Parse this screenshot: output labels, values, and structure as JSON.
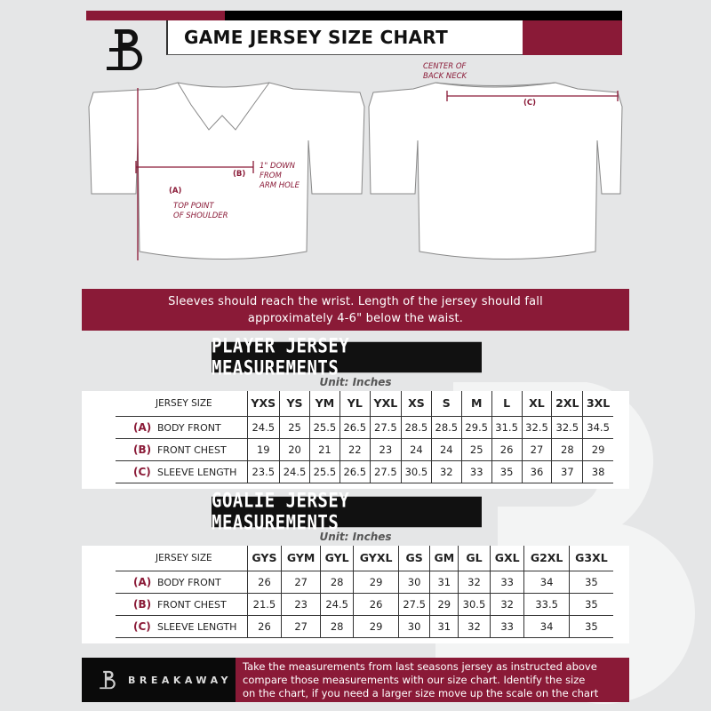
{
  "header": {
    "title": "GAME JERSEY SIZE CHART"
  },
  "colors": {
    "accent": "#8a1a37",
    "dark": "#111111",
    "background": "#e5e6e7"
  },
  "diagram": {
    "center_back_neck": [
      "CENTER OF",
      "BACK NECK"
    ],
    "label_a": "(A)",
    "label_b": "(B)",
    "label_c": "(C)",
    "top_point": [
      "TOP POINT",
      "OF SHOULDER"
    ],
    "down_from": [
      "1\" DOWN",
      "FROM",
      "ARM HOLE"
    ]
  },
  "banner": {
    "line1": "Sleeves should reach the wrist. Length of the jersey should fall",
    "line2": "approximately 4-6\" below the waist."
  },
  "player": {
    "heading": "PLAYER JERSEY MEASUREMENTS",
    "unit": "Unit: Inches",
    "size_header": "JERSEY SIZE",
    "sizes": [
      "YXS",
      "YS",
      "YM",
      "YL",
      "YXL",
      "XS",
      "S",
      "M",
      "L",
      "XL",
      "2XL",
      "3XL"
    ],
    "rows": [
      {
        "key": "(A)",
        "label": "BODY FRONT",
        "values": [
          "24.5",
          "25",
          "25.5",
          "26.5",
          "27.5",
          "28.5",
          "28.5",
          "29.5",
          "31.5",
          "32.5",
          "32.5",
          "34.5"
        ]
      },
      {
        "key": "(B)",
        "label": "FRONT CHEST",
        "values": [
          "19",
          "20",
          "21",
          "22",
          "23",
          "24",
          "24",
          "25",
          "26",
          "27",
          "28",
          "29"
        ]
      },
      {
        "key": "(C)",
        "label": "SLEEVE LENGTH",
        "values": [
          "23.5",
          "24.5",
          "25.5",
          "26.5",
          "27.5",
          "30.5",
          "32",
          "33",
          "35",
          "36",
          "37",
          "38"
        ]
      }
    ]
  },
  "goalie": {
    "heading": "GOALIE JERSEY MEASUREMENTS",
    "unit": "Unit: Inches",
    "size_header": "JERSEY SIZE",
    "sizes": [
      "GYS",
      "GYM",
      "GYL",
      "GYXL",
      "GS",
      "GM",
      "GL",
      "GXL",
      "G2XL",
      "G3XL"
    ],
    "rows": [
      {
        "key": "(A)",
        "label": "BODY FRONT",
        "values": [
          "26",
          "27",
          "28",
          "29",
          "30",
          "31",
          "32",
          "33",
          "34",
          "35"
        ]
      },
      {
        "key": "(B)",
        "label": "FRONT CHEST",
        "values": [
          "21.5",
          "23",
          "24.5",
          "26",
          "27.5",
          "29",
          "30.5",
          "32",
          "33.5",
          "35"
        ]
      },
      {
        "key": "(C)",
        "label": "SLEEVE LENGTH",
        "values": [
          "26",
          "27",
          "28",
          "29",
          "30",
          "31",
          "32",
          "33",
          "34",
          "35"
        ]
      }
    ]
  },
  "footer": {
    "brand": "BREAKAWAY",
    "lines": [
      "Take the measurements from last seasons jersey as instructed above",
      "compare those measurements  with our size chart. Identify the size",
      "on the chart, if you need a larger size move up the scale on the chart"
    ]
  }
}
